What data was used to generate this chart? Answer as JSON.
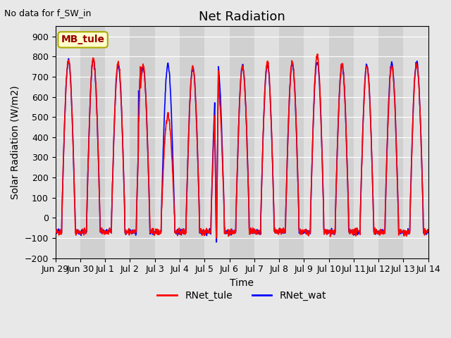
{
  "title": "Net Radiation",
  "top_left_text": "No data for f_SW_in",
  "xlabel": "Time",
  "ylabel": "Solar Radiation (W/m2)",
  "ylim": [
    -200,
    950
  ],
  "yticks": [
    -200,
    -100,
    0,
    100,
    200,
    300,
    400,
    500,
    600,
    700,
    800,
    900
  ],
  "background_color": "#e8e8e8",
  "plot_bg_color": "#d0d0d0",
  "legend_labels": [
    "RNet_tule",
    "RNet_wat"
  ],
  "annotation_box": "MB_tule",
  "annotation_bg": "#ffffcc",
  "annotation_edge": "#aaaa00",
  "line_color_tule": "red",
  "line_color_wat": "blue",
  "line_width": 1.2,
  "xtick_labels": [
    "Jun 29",
    "Jun 30",
    "Jul 1",
    "Jul 2",
    "Jul 3",
    "Jul 4",
    "Jul 5",
    "Jul 6",
    "Jul 7",
    "Jul 8",
    "Jul 9",
    "Jul 10",
    "Jul 11",
    "Jul 12",
    "Jul 13",
    "Jul 14"
  ],
  "title_fontsize": 13,
  "axis_label_fontsize": 10,
  "tick_fontsize": 9,
  "legend_fontsize": 10
}
